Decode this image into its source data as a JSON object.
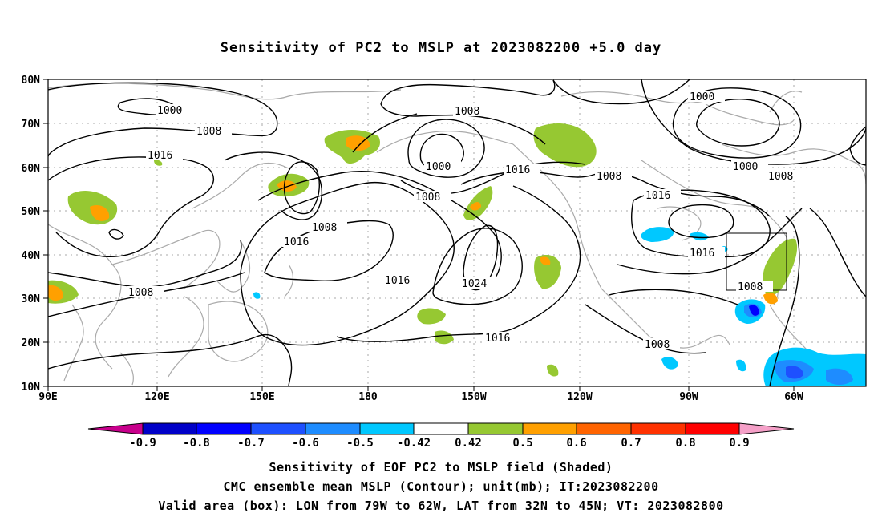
{
  "title": "Sensitivity of PC2 to MSLP at 2023082200 +5.0 day",
  "map": {
    "lat_labels": [
      "80N",
      "70N",
      "60N",
      "50N",
      "40N",
      "30N",
      "20N",
      "10N"
    ],
    "lon_labels": [
      "90E",
      "120E",
      "150E",
      "180",
      "150W",
      "120W",
      "90W",
      "60W"
    ],
    "contour_labels": {
      "c1000a": "1000",
      "c1008a": "1008",
      "c1016a": "1016",
      "c1008b": "1008",
      "c1016b": "1016",
      "c1008c": "1008",
      "c1016c": "1016",
      "c1008d": "1008",
      "c1024": "1024",
      "c1000b": "1000",
      "c1016d": "1016",
      "c1008e": "1008",
      "c1008f": "1008",
      "c1016e": "1016",
      "c1000c": "1000",
      "c1008g": "1008",
      "c1016f": "1016",
      "c1008h": "1008",
      "c1008i": "1008"
    },
    "colors": {
      "contour": "#000000",
      "coast": "#aaaaaa",
      "grid": "#aaaaaa",
      "box": "#000000"
    }
  },
  "colorbar": {
    "labels": [
      "-0.9",
      "-0.8",
      "-0.7",
      "-0.6",
      "-0.5",
      "-0.42",
      "0.42",
      "0.5",
      "0.6",
      "0.7",
      "0.8",
      "0.9"
    ],
    "colors": [
      "#c8008c",
      "#0000c8",
      "#0000ff",
      "#1e50ff",
      "#1e8cff",
      "#00c8ff",
      "#ffffff",
      "#96c832",
      "#ffa000",
      "#ff6400",
      "#ff3200",
      "#ff0000",
      "#f5a0c8"
    ]
  },
  "captions": {
    "line1": "Sensitivity of EOF PC2 to MSLP field (Shaded)",
    "line2": "CMC ensemble mean MSLP (Contour); unit(mb); IT:2023082200",
    "line3": "Valid area (box): LON from 79W to 62W, LAT from 32N to 45N; VT: 2023082800"
  }
}
